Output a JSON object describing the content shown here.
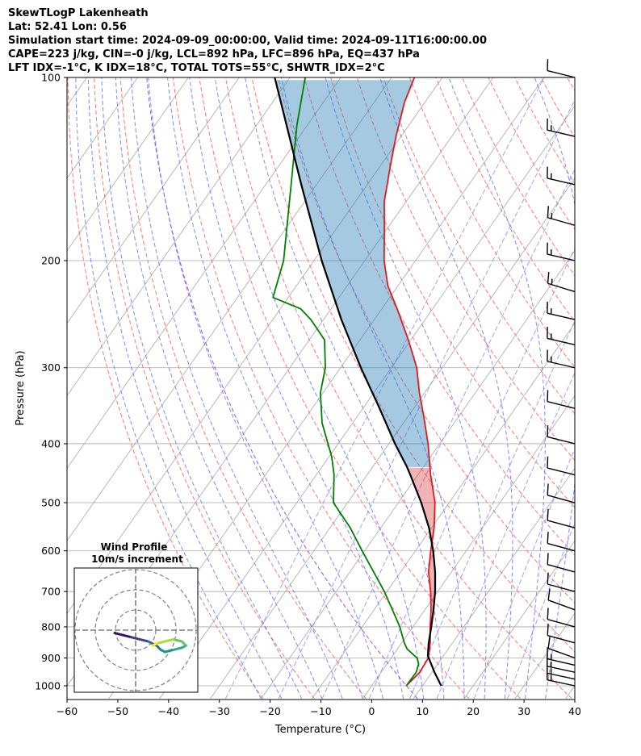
{
  "header": {
    "line1": "SkewTLogP Lakenheath",
    "line2": "Lat: 52.41   Lon: 0.56",
    "line3": "Simulation start time: 2024-09-09_00:00:00, Valid time: 2024-09-11T16:00:00.00",
    "line4": "CAPE=223 j/kg, CIN=-0 j/kg, LCL=892 hPa, LFC=896 hPa, EQ=437 hPa",
    "line5": "LFT IDX=-1°C, K IDX=18°C, TOTAL TOTS=55°C, SHWTR_IDX=2°C"
  },
  "chart_data": {
    "type": "line",
    "title": "SkewTLogP Lakenheath",
    "xlabel": "Temperature (°C)",
    "ylabel": "Pressure (hPa)",
    "xlim": [
      -60,
      40
    ],
    "ylim": [
      1050,
      100
    ],
    "y_scale": "log",
    "skew": true,
    "grid": true,
    "x_ticks": [
      "−60",
      "−50",
      "−40",
      "−30",
      "−20",
      "−10",
      "0",
      "10",
      "20",
      "30",
      "40"
    ],
    "y_ticks": [
      "100",
      "200",
      "300",
      "400",
      "500",
      "600",
      "700",
      "800",
      "900",
      "1000"
    ],
    "series": [
      {
        "name": "",
        "color": "#e31a1c",
        "quantity": "temperature",
        "points": [
          [
            1000,
            6.8
          ],
          [
            950,
            7.6
          ],
          [
            900,
            7.3
          ],
          [
            850,
            5.6
          ],
          [
            800,
            3.4
          ],
          [
            750,
            1.2
          ],
          [
            700,
            -1.4
          ],
          [
            650,
            -4.5
          ],
          [
            600,
            -7.0
          ],
          [
            550,
            -9.5
          ],
          [
            500,
            -12.8
          ],
          [
            450,
            -17.5
          ],
          [
            400,
            -22.3
          ],
          [
            360,
            -27.0
          ],
          [
            330,
            -31.0
          ],
          [
            300,
            -35.0
          ],
          [
            270,
            -40.5
          ],
          [
            240,
            -47.0
          ],
          [
            220,
            -52.0
          ],
          [
            200,
            -56.2
          ],
          [
            180,
            -60.0
          ],
          [
            160,
            -64.3
          ],
          [
            140,
            -68.0
          ],
          [
            125,
            -71.0
          ],
          [
            110,
            -74.0
          ],
          [
            100,
            -75.5
          ]
        ]
      },
      {
        "name": "",
        "color": "#007f00",
        "quantity": "dewpoint",
        "points": [
          [
            1000,
            6.8
          ],
          [
            950,
            6.9
          ],
          [
            920,
            6.2
          ],
          [
            900,
            5.1
          ],
          [
            870,
            1.9
          ],
          [
            850,
            0.5
          ],
          [
            800,
            -2.6
          ],
          [
            750,
            -6.4
          ],
          [
            700,
            -10.5
          ],
          [
            650,
            -15.3
          ],
          [
            600,
            -20.5
          ],
          [
            550,
            -26.0
          ],
          [
            500,
            -32.8
          ],
          [
            450,
            -36.5
          ],
          [
            420,
            -39.5
          ],
          [
            400,
            -42.0
          ],
          [
            370,
            -46.0
          ],
          [
            330,
            -50.5
          ],
          [
            300,
            -53.0
          ],
          [
            270,
            -57.0
          ],
          [
            250,
            -62.5
          ],
          [
            240,
            -66.0
          ],
          [
            230,
            -73.0
          ],
          [
            200,
            -76.0
          ],
          [
            150,
            -85.0
          ],
          [
            120,
            -92.0
          ],
          [
            100,
            -97.0
          ]
        ]
      },
      {
        "name": "",
        "color": "#000000",
        "quantity": "parcel",
        "points": [
          [
            1000,
            13.7
          ],
          [
            950,
            10.5
          ],
          [
            900,
            7.4
          ],
          [
            892,
            6.9
          ],
          [
            850,
            5.3
          ],
          [
            800,
            3.6
          ],
          [
            750,
            1.7
          ],
          [
            700,
            -0.5
          ],
          [
            650,
            -3.2
          ],
          [
            600,
            -6.5
          ],
          [
            550,
            -10.5
          ],
          [
            500,
            -15.5
          ],
          [
            450,
            -21.5
          ],
          [
            437,
            -23.2
          ],
          [
            400,
            -28.8
          ],
          [
            350,
            -36.7
          ],
          [
            300,
            -46.0
          ],
          [
            250,
            -56.5
          ],
          [
            200,
            -68.5
          ],
          [
            150,
            -83.0
          ],
          [
            100,
            -103.0
          ]
        ]
      }
    ],
    "shading": [
      {
        "region": "CAPE",
        "color": "#1f77b4",
        "between": [
          "temperature",
          "parcel"
        ],
        "pressure_range": [
          437,
          100
        ]
      },
      {
        "region": "CIN",
        "color": "#d62728",
        "between": [
          "temperature",
          "parcel"
        ],
        "pressure_range": [
          892,
          437
        ]
      }
    ],
    "background_lines": {
      "isotherms_color": "#a9a9a9",
      "dry_adiabats_color": "#ff6666",
      "moist_adiabats_color": "#6677ff",
      "mixing_ratio_color": "#8888ff",
      "highlight_adiabat_color": "#9944cc"
    },
    "wind_barbs": [
      {
        "p": 1000,
        "u": -14,
        "v": 3
      },
      {
        "p": 975,
        "u": -14,
        "v": 3
      },
      {
        "p": 950,
        "u": -14,
        "v": 3
      },
      {
        "p": 925,
        "u": -13,
        "v": 3
      },
      {
        "p": 900,
        "u": -11,
        "v": 4
      },
      {
        "p": 850,
        "u": -11,
        "v": 3
      },
      {
        "p": 800,
        "u": -11,
        "v": 3
      },
      {
        "p": 750,
        "u": -11,
        "v": 4
      },
      {
        "p": 700,
        "u": -11,
        "v": 3
      },
      {
        "p": 650,
        "u": -11,
        "v": 3
      },
      {
        "p": 600,
        "u": -11,
        "v": 3
      },
      {
        "p": 550,
        "u": -11,
        "v": 3
      },
      {
        "p": 500,
        "u": -11,
        "v": 3
      },
      {
        "p": 450,
        "u": -12,
        "v": 3
      },
      {
        "p": 400,
        "u": -12,
        "v": 3
      },
      {
        "p": 350,
        "u": -12,
        "v": 3
      },
      {
        "p": 300,
        "u": -13,
        "v": 3
      },
      {
        "p": 275,
        "u": -13,
        "v": 3
      },
      {
        "p": 250,
        "u": -13,
        "v": 3
      },
      {
        "p": 225,
        "u": -13,
        "v": 4
      },
      {
        "p": 200,
        "u": -13,
        "v": 3
      },
      {
        "p": 175,
        "u": -14,
        "v": 4
      },
      {
        "p": 150,
        "u": -13,
        "v": 3
      },
      {
        "p": 125,
        "u": -13,
        "v": 3
      },
      {
        "p": 100,
        "u": -12,
        "v": 3
      }
    ],
    "inset": {
      "title": "Wind Profile",
      "subtitle": "10m/s increment",
      "hodograph": [
        [
          -5,
          2
        ],
        [
          -3,
          1.5
        ],
        [
          -1,
          1
        ],
        [
          1,
          0.5
        ],
        [
          3,
          0
        ],
        [
          5,
          -1
        ],
        [
          6,
          -2
        ],
        [
          7,
          -2.5
        ],
        [
          9,
          -2
        ],
        [
          11,
          -1.5
        ],
        [
          12,
          -1
        ],
        [
          11,
          0
        ],
        [
          9,
          0.5
        ],
        [
          7,
          0
        ],
        [
          5,
          -0.5
        ],
        [
          4,
          -1
        ]
      ]
    }
  }
}
